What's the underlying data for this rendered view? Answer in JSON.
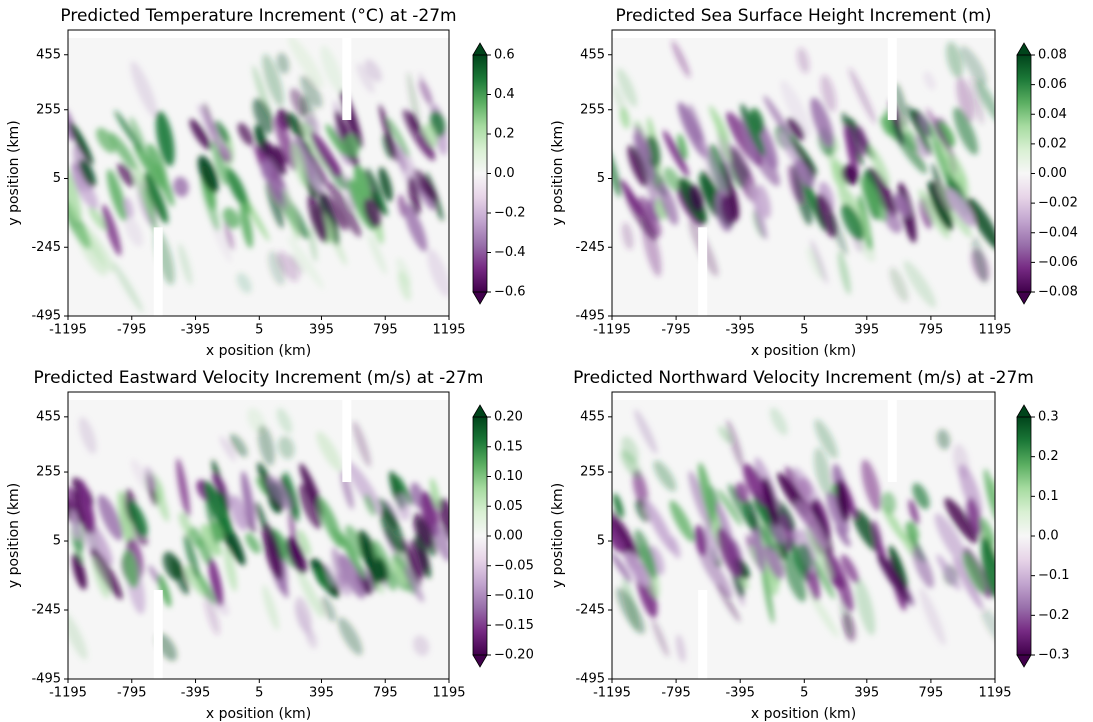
{
  "chart_data": [
    {
      "type": "heatmap",
      "title": "Predicted Temperature Increment (°C) at -27m",
      "x_label": "x position (km)",
      "y_label": "y position (km)",
      "xlim": [
        -1195,
        1195
      ],
      "xticks": [
        -1195,
        -795,
        -395,
        5,
        395,
        795,
        1195
      ],
      "ylim": [
        -495,
        545
      ],
      "yticks": [
        -495,
        -245,
        5,
        255,
        455
      ],
      "clim": [
        -0.6,
        0.6
      ],
      "cticks": [
        {
          "value": -0.6,
          "label": "−0.6"
        },
        {
          "value": -0.4,
          "label": "−0.4"
        },
        {
          "value": -0.2,
          "label": "−0.2"
        },
        {
          "value": 0,
          "label": "0.0"
        },
        0.2,
        0.4,
        0.6
      ],
      "colors": [
        "#40004b",
        "#762a83",
        "#9970ab",
        "#c2a5cf",
        "#e7d4e8",
        "#f7f7f7",
        "#d9f0d3",
        "#a6dba0",
        "#5aae61",
        "#1b7837",
        "#00441b"
      ]
    },
    {
      "type": "heatmap",
      "title": "Predicted Sea Surface Height Increment (m)",
      "x_label": "x position (km)",
      "y_label": "y position (km)",
      "xlim": [
        -1195,
        1195
      ],
      "xticks": [
        -1195,
        -795,
        -395,
        5,
        395,
        795,
        1195
      ],
      "ylim": [
        -495,
        545
      ],
      "yticks": [
        -495,
        -245,
        5,
        255,
        455
      ],
      "clim": [
        -0.08,
        0.08
      ],
      "cticks": [
        {
          "value": -0.08,
          "label": "−0.08"
        },
        {
          "value": -0.06,
          "label": "−0.06"
        },
        {
          "value": -0.04,
          "label": "−0.04"
        },
        {
          "value": -0.02,
          "label": "−0.02"
        },
        {
          "value": 0,
          "label": "0.00"
        },
        0.02,
        0.04,
        0.06,
        0.08
      ],
      "colors": [
        "#40004b",
        "#762a83",
        "#9970ab",
        "#c2a5cf",
        "#e7d4e8",
        "#f7f7f7",
        "#d9f0d3",
        "#a6dba0",
        "#5aae61",
        "#1b7837",
        "#00441b"
      ]
    },
    {
      "type": "heatmap",
      "title": "Predicted Eastward Velocity Increment (m/s) at -27m",
      "x_label": "x position (km)",
      "y_label": "y position (km)",
      "xlim": [
        -1195,
        1195
      ],
      "xticks": [
        -1195,
        -795,
        -395,
        5,
        395,
        795,
        1195
      ],
      "ylim": [
        -495,
        545
      ],
      "yticks": [
        -495,
        -245,
        5,
        255,
        455
      ],
      "clim": [
        -0.2,
        0.2
      ],
      "cticks": [
        {
          "value": -0.2,
          "label": "−0.20"
        },
        {
          "value": -0.15,
          "label": "−0.15"
        },
        {
          "value": -0.1,
          "label": "−0.10"
        },
        {
          "value": -0.05,
          "label": "−0.05"
        },
        {
          "value": 0,
          "label": "0.00"
        },
        0.05,
        {
          "value": 0.1,
          "label": "0.10"
        },
        0.15,
        {
          "value": 0.2,
          "label": "0.20"
        }
      ],
      "colors": [
        "#40004b",
        "#762a83",
        "#9970ab",
        "#c2a5cf",
        "#e7d4e8",
        "#f7f7f7",
        "#d9f0d3",
        "#a6dba0",
        "#5aae61",
        "#1b7837",
        "#00441b"
      ]
    },
    {
      "type": "heatmap",
      "title": "Predicted Northward Velocity Increment (m/s) at -27m",
      "x_label": "x position (km)",
      "y_label": "y position (km)",
      "xlim": [
        -1195,
        1195
      ],
      "xticks": [
        -1195,
        -795,
        -395,
        5,
        395,
        795,
        1195
      ],
      "ylim": [
        -495,
        545
      ],
      "yticks": [
        -495,
        -245,
        5,
        255,
        455
      ],
      "clim": [
        -0.3,
        0.3
      ],
      "cticks": [
        {
          "value": -0.3,
          "label": "−0.3"
        },
        {
          "value": -0.2,
          "label": "−0.2"
        },
        {
          "value": -0.1,
          "label": "−0.1"
        },
        {
          "value": 0,
          "label": "0.0"
        },
        0.1,
        0.2,
        0.3
      ],
      "colors": [
        "#40004b",
        "#762a83",
        "#9970ab",
        "#c2a5cf",
        "#e7d4e8",
        "#f7f7f7",
        "#d9f0d3",
        "#a6dba0",
        "#5aae61",
        "#1b7837",
        "#00441b"
      ]
    }
  ]
}
